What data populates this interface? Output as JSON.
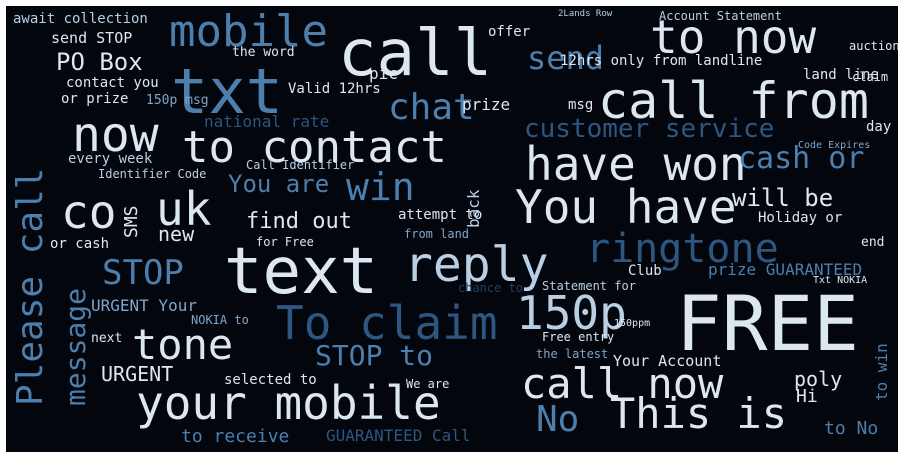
{
  "palette": {
    "background": "#03060c",
    "pale": "#dde7f2",
    "light": "#b9cfe4",
    "mid": "#7fa6cc",
    "blue": "#4d7fae",
    "dark": "#2d5680",
    "deep": "#1f3f61"
  },
  "words": [
    "call",
    "FREE",
    "text",
    "mobile",
    "txt",
    "to now",
    "call from",
    "now",
    "to contact",
    "have won",
    "You have",
    "co",
    "uk",
    "reply",
    "ringtone",
    "Please call",
    "message",
    "tone",
    "your mobile",
    "call now",
    "This is",
    "To claim",
    "150p",
    "chat",
    "STOP",
    "STOP to",
    "No",
    "send",
    "customer service",
    "You are",
    "win",
    "cash or",
    "will be",
    "PO Box",
    "find out",
    "new",
    "await collection",
    "send STOP",
    "contact you",
    "or prize",
    "Valid 12hrs",
    "150p msg",
    "national rate",
    "every week",
    "Identifier Code",
    "Call Identifier",
    "SMS",
    "attempt to",
    "from land",
    "for Free",
    "or cash",
    "URGENT Your",
    "NOKIA to",
    "next",
    "URGENT",
    "selected to",
    "to receive",
    "GUARANTEED Call",
    "to No",
    "Holiday or",
    "prize GUARANTEED",
    "Club",
    "chance to",
    "Free entry",
    "Your Account",
    "poly",
    "Hi",
    "the latest",
    "12hrs only from landline",
    "land line",
    "Account Statement",
    "2Lands Row",
    "offer",
    "pic",
    "the word",
    "prize",
    "msg",
    "day",
    "auction",
    "back",
    "end",
    "to win",
    "Statement for",
    "Code Expires",
    "We are",
    "Txt NOKIA",
    "150ppm",
    "claim"
  ]
}
